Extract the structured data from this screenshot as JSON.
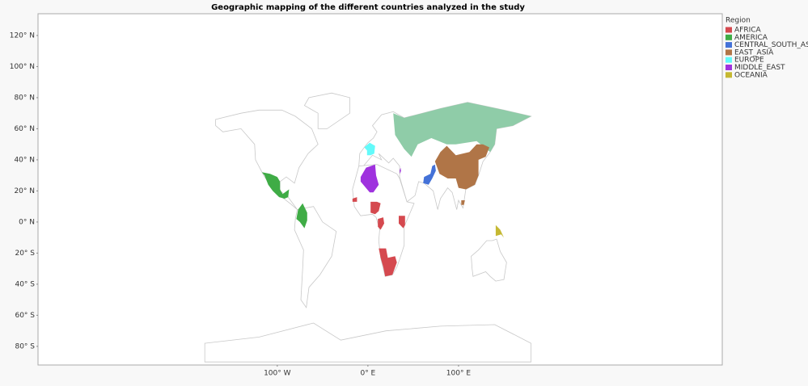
{
  "chart_data": {
    "type": "map",
    "title": "Geographic mapping of the different countries analyzed in the study",
    "legend_title": "Region",
    "legend_position": "right",
    "series": [
      {
        "name": "AFRICA",
        "color": "#d5494f"
      },
      {
        "name": "AMERICA",
        "color": "#3fac46"
      },
      {
        "name": "CENTRAL_SOUTH_ASIA",
        "color": "#4472d8"
      },
      {
        "name": "EAST_ASIA",
        "color": "#b07547"
      },
      {
        "name": "EUROPE",
        "color": "#63fafa"
      },
      {
        "name": "MIDDLE_EAST",
        "color": "#9f32de"
      },
      {
        "name": "OCEANIA",
        "color": "#c5b832"
      }
    ],
    "xlim": [
      -364,
      391
    ],
    "ylim": [
      -92,
      134
    ],
    "xticks": [
      {
        "value": -100,
        "label": "100° W"
      },
      {
        "value": 0,
        "label": "0° E"
      },
      {
        "value": 100,
        "label": "100° E"
      }
    ],
    "yticks": [
      {
        "value": 120,
        "label": "120° N"
      },
      {
        "value": 100,
        "label": "100° N"
      },
      {
        "value": 80,
        "label": "80° N"
      },
      {
        "value": 60,
        "label": "60° N"
      },
      {
        "value": 40,
        "label": "40° N"
      },
      {
        "value": 20,
        "label": "20° N"
      },
      {
        "value": 0,
        "label": "0° N"
      },
      {
        "value": -20,
        "label": "20° S"
      },
      {
        "value": -40,
        "label": "40° S"
      },
      {
        "value": -60,
        "label": "60° S"
      },
      {
        "value": -80,
        "label": "80° S"
      }
    ]
  }
}
